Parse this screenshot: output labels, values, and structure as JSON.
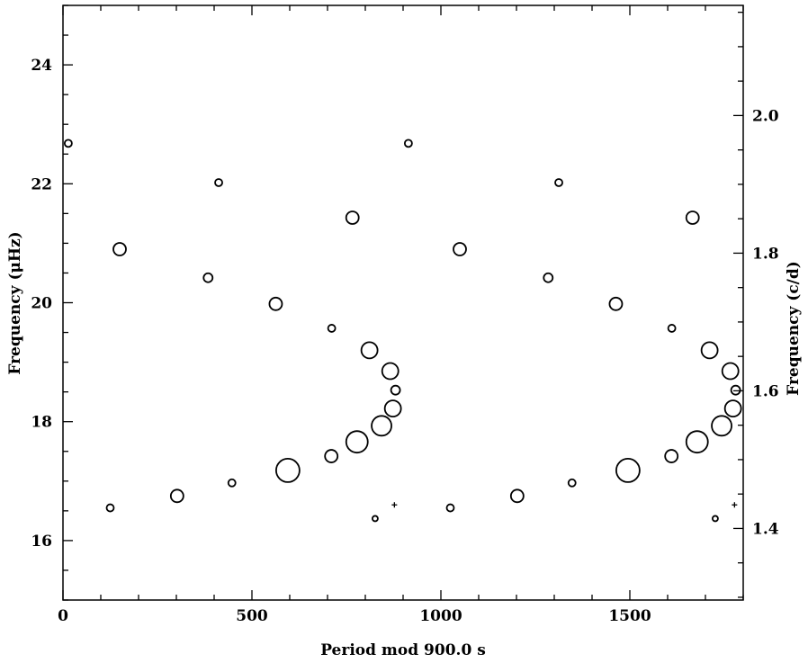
{
  "chart_data": {
    "type": "scatter",
    "title": "",
    "xlabel": "Period mod 900.0 s",
    "ylabel": "Frequency (μHz)",
    "y2label": "Frequency (c/d)",
    "xlim": [
      0,
      1800
    ],
    "ylim": [
      15,
      25
    ],
    "y2lim": [
      1.296,
      2.16
    ],
    "x_ticks": [
      0,
      500,
      1000,
      1500
    ],
    "x_tick_labels": [
      "0",
      "500",
      "1000",
      "1500"
    ],
    "y_ticks": [
      16,
      18,
      20,
      22,
      24
    ],
    "y_tick_labels": [
      "16",
      "18",
      "20",
      "22",
      "24"
    ],
    "y2_ticks": [
      1.4,
      1.6,
      1.8,
      2.0
    ],
    "y2_tick_labels": [
      "1.4",
      "1.6",
      "1.8",
      "2.0"
    ],
    "grid": false,
    "marker": "open-circle",
    "note": "",
    "points": [
      {
        "x": 14,
        "y": 22.68,
        "size": 1
      },
      {
        "x": 914,
        "y": 22.68,
        "size": 1
      },
      {
        "x": 412,
        "y": 22.02,
        "size": 1
      },
      {
        "x": 1312,
        "y": 22.02,
        "size": 1
      },
      {
        "x": 766,
        "y": 21.43,
        "size": 3
      },
      {
        "x": 1666,
        "y": 21.43,
        "size": 3
      },
      {
        "x": 150,
        "y": 20.9,
        "size": 3
      },
      {
        "x": 1050,
        "y": 20.9,
        "size": 3
      },
      {
        "x": 384,
        "y": 20.42,
        "size": 2
      },
      {
        "x": 1284,
        "y": 20.42,
        "size": 2
      },
      {
        "x": 563,
        "y": 19.98,
        "size": 3
      },
      {
        "x": 1463,
        "y": 19.98,
        "size": 3
      },
      {
        "x": 711,
        "y": 19.57,
        "size": 1
      },
      {
        "x": 1611,
        "y": 19.57,
        "size": 1
      },
      {
        "x": 811,
        "y": 19.2,
        "size": 4
      },
      {
        "x": 1711,
        "y": 19.2,
        "size": 4
      },
      {
        "x": 866,
        "y": 18.85,
        "size": 4
      },
      {
        "x": 1766,
        "y": 18.85,
        "size": 4
      },
      {
        "x": 880,
        "y": 18.53,
        "size": 2
      },
      {
        "x": 1780,
        "y": 18.53,
        "size": 2
      },
      {
        "x": 873,
        "y": 18.22,
        "size": 4
      },
      {
        "x": 1773,
        "y": 18.22,
        "size": 4
      },
      {
        "x": 843,
        "y": 17.93,
        "size": 5
      },
      {
        "x": 1743,
        "y": 17.93,
        "size": 5
      },
      {
        "x": 778,
        "y": 17.66,
        "size": 6
      },
      {
        "x": 1678,
        "y": 17.66,
        "size": 6
      },
      {
        "x": 710,
        "y": 17.42,
        "size": 3
      },
      {
        "x": 1610,
        "y": 17.42,
        "size": 3
      },
      {
        "x": 595,
        "y": 17.18,
        "size": 7
      },
      {
        "x": 1495,
        "y": 17.18,
        "size": 7
      },
      {
        "x": 447,
        "y": 16.97,
        "size": 1
      },
      {
        "x": 1347,
        "y": 16.97,
        "size": 1
      },
      {
        "x": 302,
        "y": 16.75,
        "size": 3
      },
      {
        "x": 1202,
        "y": 16.75,
        "size": 3
      },
      {
        "x": 125,
        "y": 16.55,
        "size": 1
      },
      {
        "x": 1025,
        "y": 16.55,
        "size": 1
      },
      {
        "x": 826,
        "y": 16.37,
        "size": 0
      },
      {
        "x": 1726,
        "y": 16.37,
        "size": 0
      }
    ],
    "crosses": [
      {
        "x": 877,
        "y": 16.6
      },
      {
        "x": 1777,
        "y": 16.6
      }
    ]
  }
}
